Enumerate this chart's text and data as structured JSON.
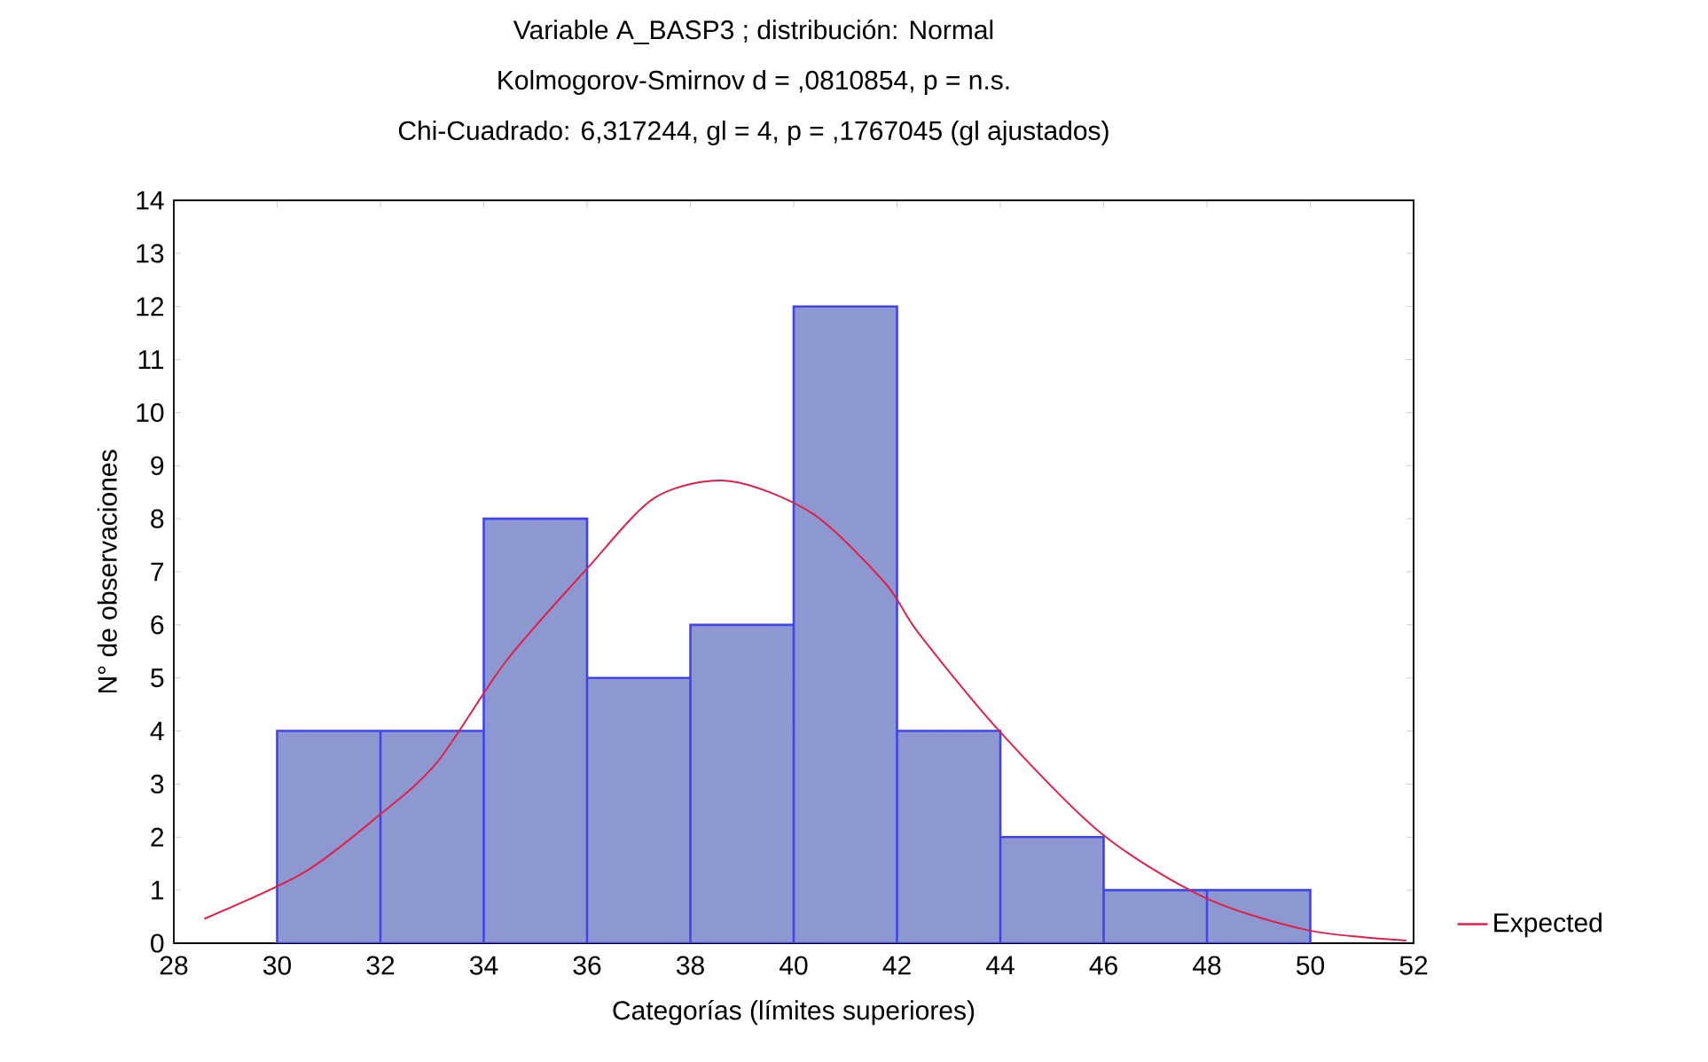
{
  "chart_data": {
    "type": "histogram",
    "title": "Variable A_BASP3 ; distribución: Normal",
    "subtitle": "Kolmogorov-Smirnov d = ,0810854, p = n.s.",
    "annotations": [
      "Chi-Cuadrado: 6,317244, gl = 4, p = ,1767045 (gl ajustados)"
    ],
    "xlabel": "Categorías (límites superiores)",
    "ylabel": "N° de observaciones",
    "bins": [
      30,
      32,
      34,
      36,
      38,
      40,
      42,
      44,
      46,
      48,
      50
    ],
    "values": [
      4,
      4,
      8,
      5,
      6,
      12,
      4,
      2,
      1,
      1
    ],
    "color": "#8e98d0",
    "series": [
      {
        "name": "Expected",
        "type": "line",
        "color": "#e0204a",
        "x": [
          28.59,
          30.53,
          31.96,
          33.09,
          34.42,
          36.0,
          37.32,
          38.76,
          40.36,
          41.76,
          42.42,
          43.98,
          45.98,
          47.98,
          49.98,
          51.86
        ],
        "values": [
          0.46,
          1.34,
          2.4,
          3.4,
          5.3,
          7.06,
          8.4,
          8.71,
          8.1,
          6.8,
          5.84,
          4.0,
          2.05,
          0.85,
          0.24,
          0.05
        ]
      }
    ],
    "xlim": [
      28,
      52
    ],
    "xticks": [
      28,
      30,
      32,
      34,
      36,
      38,
      40,
      42,
      44,
      46,
      48,
      50,
      52
    ],
    "ylim": [
      0,
      14
    ],
    "yticks": [
      0,
      1,
      2,
      3,
      4,
      5,
      6,
      7,
      8,
      9,
      10,
      11,
      12,
      13,
      14
    ],
    "grid": false,
    "legend": "right"
  }
}
